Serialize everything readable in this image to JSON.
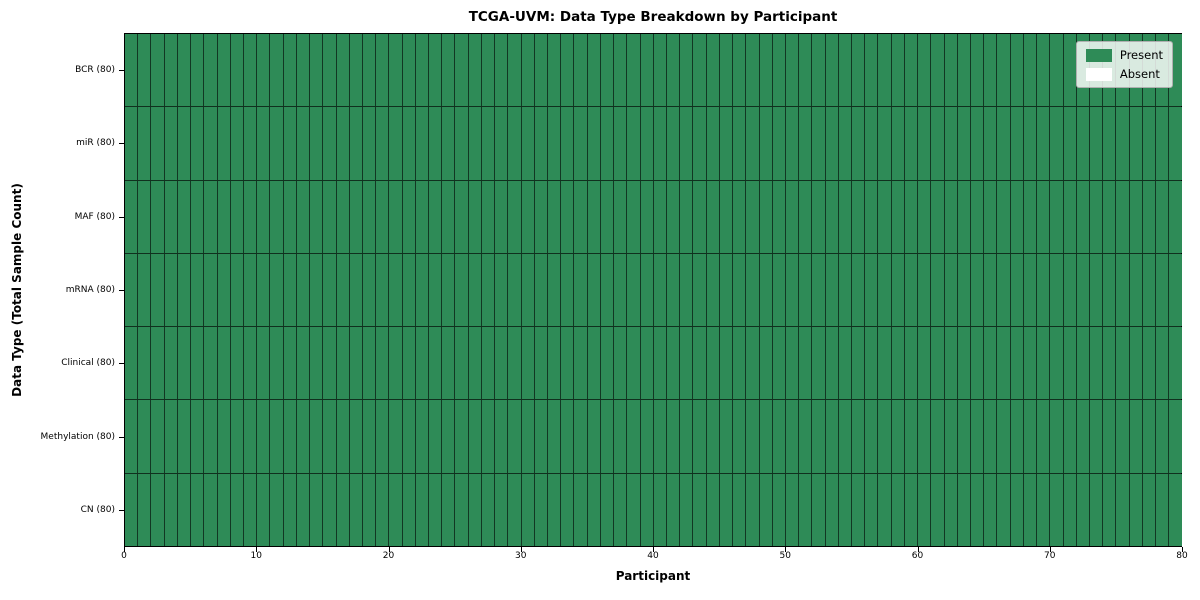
{
  "chart_data": {
    "type": "heatmap",
    "title": "TCGA-UVM: Data Type Breakdown by Participant",
    "xlabel": "Participant",
    "ylabel": "Data Type (Total Sample Count)",
    "xlim": [
      0,
      80
    ],
    "x_ticks": [
      0,
      10,
      20,
      30,
      40,
      50,
      60,
      70,
      80
    ],
    "n_participants": 80,
    "rows": [
      {
        "label": "BCR (80)",
        "data_type": "BCR",
        "total_samples": 80,
        "present_count": 80,
        "absent_count": 0
      },
      {
        "label": "miR (80)",
        "data_type": "miR",
        "total_samples": 80,
        "present_count": 80,
        "absent_count": 0
      },
      {
        "label": "MAF (80)",
        "data_type": "MAF",
        "total_samples": 80,
        "present_count": 80,
        "absent_count": 0
      },
      {
        "label": "mRNA (80)",
        "data_type": "mRNA",
        "total_samples": 80,
        "present_count": 80,
        "absent_count": 0
      },
      {
        "label": "Clinical (80)",
        "data_type": "Clinical",
        "total_samples": 80,
        "present_count": 80,
        "absent_count": 0
      },
      {
        "label": "Methylation (80)",
        "data_type": "Methylation",
        "total_samples": 80,
        "present_count": 80,
        "absent_count": 0
      },
      {
        "label": "CN (80)",
        "data_type": "CN",
        "total_samples": 80,
        "present_count": 80,
        "absent_count": 0
      }
    ],
    "legend": {
      "position": "upper right",
      "entries": [
        {
          "label": "Present",
          "color": "#2e8b57"
        },
        {
          "label": "Absent",
          "color": "#ffffff"
        }
      ]
    },
    "colors": {
      "present": "#2e8b57",
      "absent": "#ffffff",
      "cell_border": "rgba(0,0,0,0.6)",
      "axes_border": "#000000"
    },
    "grid": true,
    "legend_position": "upper right"
  }
}
